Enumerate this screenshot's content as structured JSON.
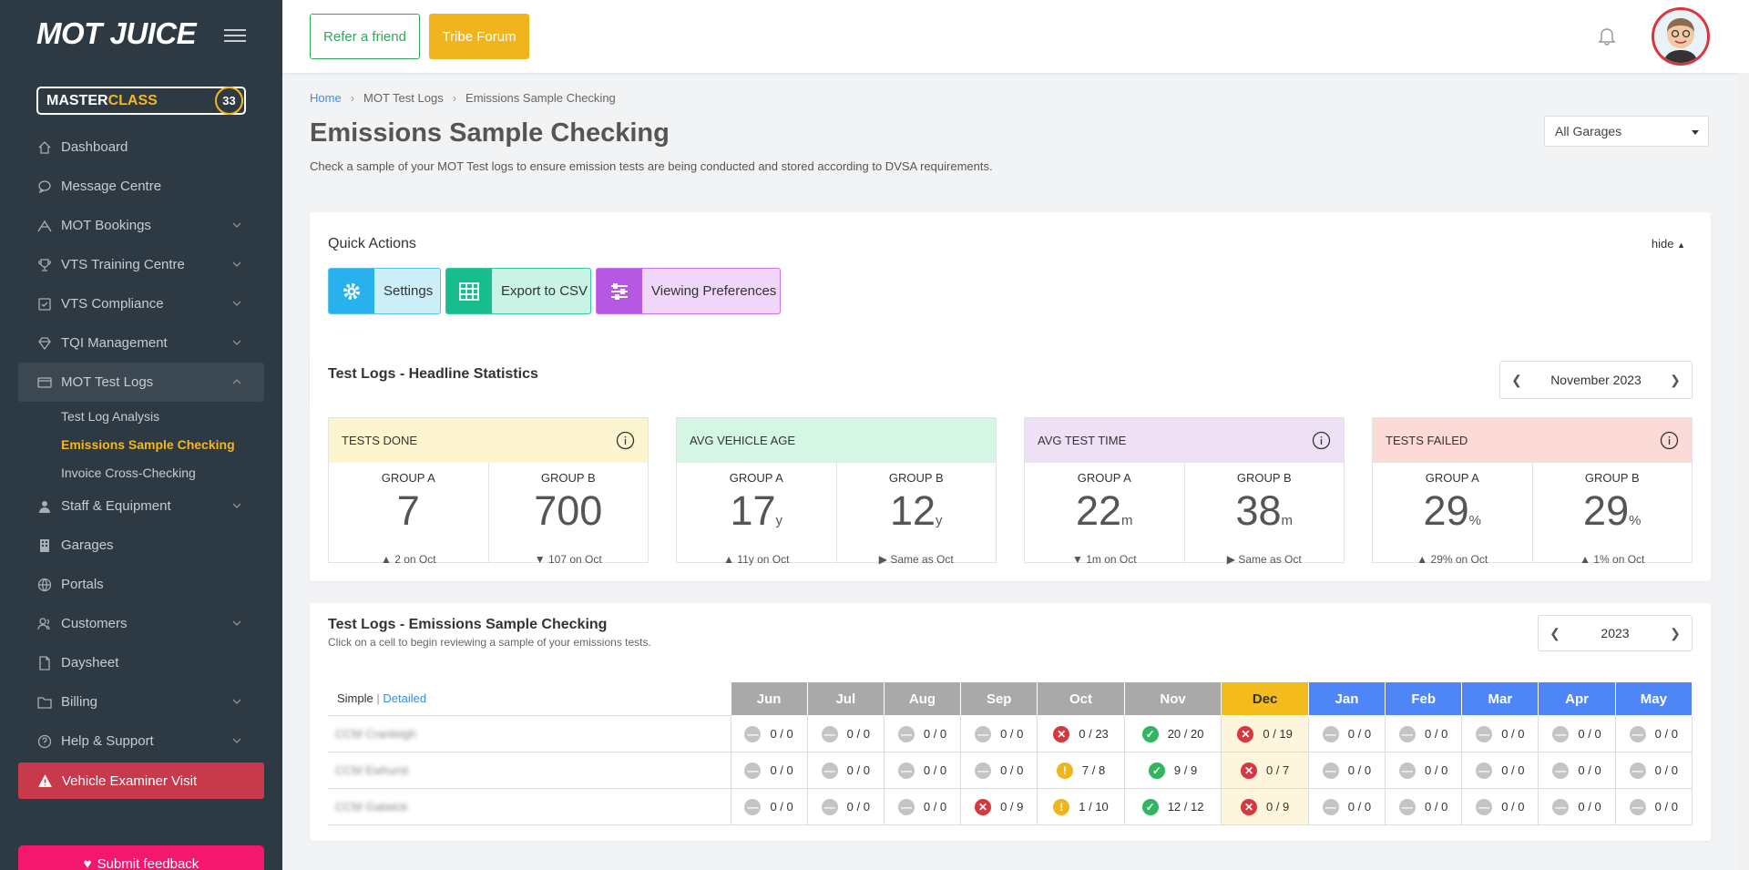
{
  "sidebar": {
    "logo": "MOT JUICE",
    "masterclass": {
      "prefix": "MASTER",
      "suffix": "CLASS",
      "count": "33"
    },
    "items": [
      {
        "label": "Dashboard",
        "icon": "home-icon"
      },
      {
        "label": "Message Centre",
        "icon": "chat-icon"
      },
      {
        "label": "MOT Bookings",
        "icon": "bookings-icon"
      },
      {
        "label": "VTS Training Centre",
        "icon": "trophy-icon"
      },
      {
        "label": "VTS Compliance",
        "icon": "check-square-icon"
      },
      {
        "label": "TQI Management",
        "icon": "diamond-icon"
      },
      {
        "label": "MOT Test Logs",
        "icon": "log-icon"
      },
      {
        "label": "Staff & Equipment",
        "icon": "person-icon"
      },
      {
        "label": "Garages",
        "icon": "building-icon"
      },
      {
        "label": "Portals",
        "icon": "globe-icon"
      },
      {
        "label": "Customers",
        "icon": "customers-icon"
      },
      {
        "label": "Daysheet",
        "icon": "file-icon"
      },
      {
        "label": "Billing",
        "icon": "folder-icon"
      },
      {
        "label": "Help & Support",
        "icon": "help-icon"
      }
    ],
    "sub_items": [
      "Test Log Analysis",
      "Emissions Sample Checking",
      "Invoice Cross-Checking"
    ],
    "vehicle_examiner": "Vehicle Examiner Visit",
    "feedback": "Submit feedback"
  },
  "topbar": {
    "refer": "Refer a friend",
    "tribe": "Tribe Forum"
  },
  "breadcrumb": {
    "home": "Home",
    "logs": "MOT Test Logs",
    "current": "Emissions Sample Checking"
  },
  "page": {
    "title": "Emissions Sample Checking",
    "description": "Check a sample of your MOT Test logs to ensure emission tests are being conducted and stored according to DVSA requirements.",
    "garage_select": "All Garages"
  },
  "quick_actions": {
    "title": "Quick Actions",
    "hide": "hide",
    "settings": "Settings",
    "export": "Export to CSV",
    "viewing": "Viewing Preferences"
  },
  "headline": {
    "title": "Test Logs - Headline Statistics",
    "period": "November 2023",
    "group_a": "GROUP A",
    "group_b": "GROUP B",
    "boxes": [
      {
        "label": "TESTS DONE",
        "a": "7",
        "a_unit": "",
        "a_change": "2 on Oct",
        "b": "700",
        "b_unit": "",
        "b_change": "107 on Oct"
      },
      {
        "label": "AVG VEHICLE AGE",
        "a": "17",
        "a_unit": "y",
        "a_change": "11y on Oct",
        "b": "12",
        "b_unit": "y",
        "b_change": "Same as Oct"
      },
      {
        "label": "AVG TEST TIME",
        "a": "22",
        "a_unit": "m",
        "a_change": "1m on Oct",
        "b": "38",
        "b_unit": "m",
        "b_change": "Same as Oct"
      },
      {
        "label": "TESTS FAILED",
        "a": "29",
        "a_unit": "%",
        "a_change": "29% on Oct",
        "b": "29",
        "b_unit": "%",
        "b_change": "1% on Oct"
      }
    ]
  },
  "emissions": {
    "title": "Test Logs - Emissions Sample Checking",
    "subtitle": "Click on a cell to begin reviewing a sample of your emissions tests.",
    "year": "2023",
    "simple": "Simple",
    "divider": "|",
    "detailed": "Detailed",
    "months": [
      "Jun",
      "Jul",
      "Aug",
      "Sep",
      "Oct",
      "Nov",
      "Dec",
      "Jan",
      "Feb",
      "Mar",
      "Apr",
      "May"
    ],
    "rows": [
      {
        "name": "CCM Cranleigh",
        "cells": [
          [
            "none",
            "0 / 0"
          ],
          [
            "none",
            "0 / 0"
          ],
          [
            "none",
            "0 / 0"
          ],
          [
            "none",
            "0 / 0"
          ],
          [
            "fail",
            "0 / 23"
          ],
          [
            "ok",
            "20 / 20"
          ],
          [
            "fail",
            "0 / 19"
          ],
          [
            "none",
            "0 / 0"
          ],
          [
            "none",
            "0 / 0"
          ],
          [
            "none",
            "0 / 0"
          ],
          [
            "none",
            "0 / 0"
          ],
          [
            "none",
            "0 / 0"
          ]
        ]
      },
      {
        "name": "CCM Ewhurst",
        "cells": [
          [
            "none",
            "0 / 0"
          ],
          [
            "none",
            "0 / 0"
          ],
          [
            "none",
            "0 / 0"
          ],
          [
            "none",
            "0 / 0"
          ],
          [
            "warn",
            "7 / 8"
          ],
          [
            "ok",
            "9 / 9"
          ],
          [
            "fail",
            "0 / 7"
          ],
          [
            "none",
            "0 / 0"
          ],
          [
            "none",
            "0 / 0"
          ],
          [
            "none",
            "0 / 0"
          ],
          [
            "none",
            "0 / 0"
          ],
          [
            "none",
            "0 / 0"
          ]
        ]
      },
      {
        "name": "CCM Gatwick",
        "cells": [
          [
            "none",
            "0 / 0"
          ],
          [
            "none",
            "0 / 0"
          ],
          [
            "none",
            "0 / 0"
          ],
          [
            "fail",
            "0 / 9"
          ],
          [
            "warn",
            "1 / 10"
          ],
          [
            "ok",
            "12 / 12"
          ],
          [
            "fail",
            "0 / 9"
          ],
          [
            "none",
            "0 / 0"
          ],
          [
            "none",
            "0 / 0"
          ],
          [
            "none",
            "0 / 0"
          ],
          [
            "none",
            "0 / 0"
          ],
          [
            "none",
            "0 / 0"
          ]
        ]
      }
    ]
  },
  "colors": {
    "sidebar": "#2d3a44",
    "accent": "#f5b622",
    "blue": "#4f86f7",
    "grey": "#a9a9a9",
    "current_month": "#f3bb1c"
  }
}
